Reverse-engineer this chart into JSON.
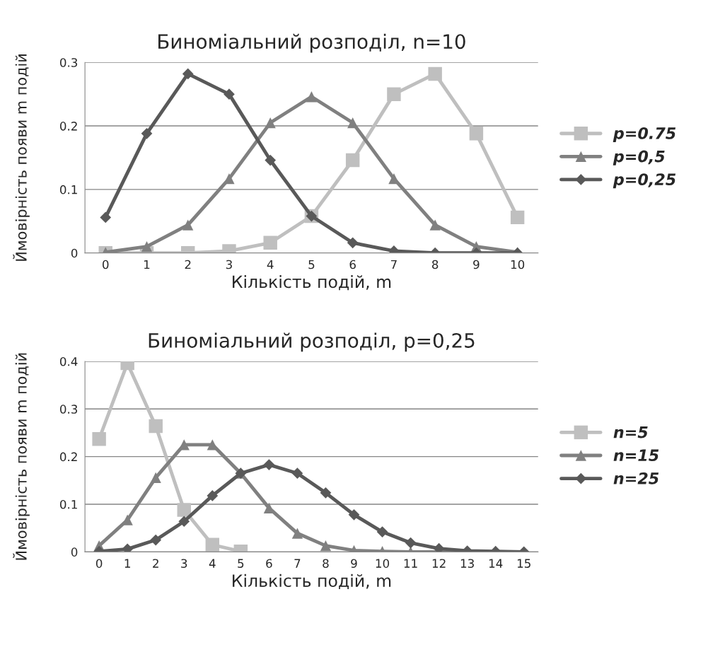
{
  "chart_data": [
    {
      "type": "line",
      "title": "Биноміальний розподіл, n=10",
      "xlabel": "Кількість подій, m",
      "ylabel": "Ймовірність появи m подій",
      "categories": [
        "0",
        "1",
        "2",
        "3",
        "4",
        "5",
        "6",
        "7",
        "8",
        "9",
        "10"
      ],
      "series": [
        {
          "name": "p=0.75",
          "color": "#bfbfbf",
          "marker": "square",
          "values": [
            0.0,
            0.0,
            0.0,
            0.003,
            0.016,
            0.058,
            0.146,
            0.25,
            0.282,
            0.188,
            0.056
          ]
        },
        {
          "name": "p=0,5",
          "color": "#808080",
          "marker": "triangle",
          "values": [
            0.001,
            0.01,
            0.044,
            0.117,
            0.205,
            0.246,
            0.205,
            0.117,
            0.044,
            0.01,
            0.001
          ]
        },
        {
          "name": "p=0,25",
          "color": "#595959",
          "marker": "diamond",
          "values": [
            0.056,
            0.188,
            0.282,
            0.25,
            0.146,
            0.058,
            0.016,
            0.003,
            0.0,
            0.0,
            0.0
          ]
        }
      ],
      "ylim": [
        0,
        0.3
      ],
      "yticks": [
        0,
        0.1,
        0.2,
        0.3
      ],
      "grid": "y",
      "legend": "right"
    },
    {
      "type": "line",
      "title": "Биноміальний розподіл, p=0,25",
      "xlabel": "Кількість подій, m",
      "ylabel": "Ймовірність появи m подій",
      "categories": [
        "0",
        "1",
        "2",
        "3",
        "4",
        "5",
        "6",
        "7",
        "8",
        "9",
        "10",
        "11",
        "12",
        "13",
        "14",
        "15"
      ],
      "series": [
        {
          "name": "n=5",
          "color": "#bfbfbf",
          "marker": "square",
          "values": [
            0.237,
            0.396,
            0.264,
            0.088,
            0.015,
            0.001,
            null,
            null,
            null,
            null,
            null,
            null,
            null,
            null,
            null,
            null
          ]
        },
        {
          "name": "n=15",
          "color": "#808080",
          "marker": "triangle",
          "values": [
            0.013,
            0.067,
            0.156,
            0.225,
            0.225,
            0.165,
            0.092,
            0.039,
            0.013,
            0.003,
            0.001,
            0.0,
            0.0,
            0.0,
            0.0,
            0.0
          ]
        },
        {
          "name": "n=25",
          "color": "#595959",
          "marker": "diamond",
          "values": [
            0.001,
            0.006,
            0.025,
            0.064,
            0.118,
            0.165,
            0.183,
            0.165,
            0.124,
            0.078,
            0.042,
            0.019,
            0.007,
            0.002,
            0.001,
            0.0
          ]
        }
      ],
      "ylim": [
        0,
        0.4
      ],
      "yticks": [
        0,
        0.1,
        0.2,
        0.3,
        0.4
      ],
      "grid": "y",
      "legend": "right"
    }
  ]
}
